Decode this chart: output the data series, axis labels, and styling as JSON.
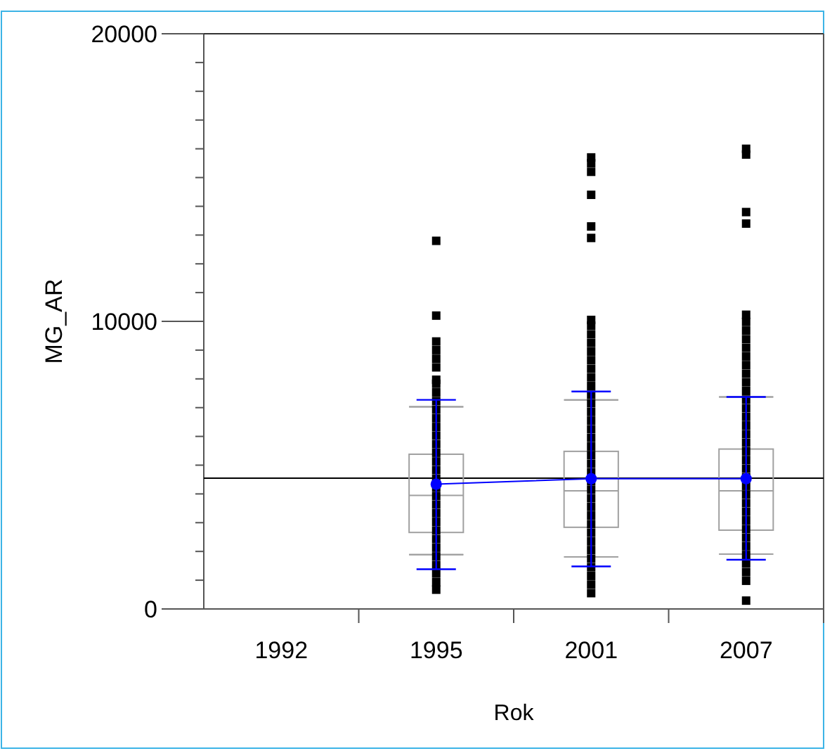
{
  "chart_data": {
    "type": "box",
    "xlabel": "Rok",
    "ylabel": "MG_AR",
    "categories": [
      "1992",
      "1995",
      "2001",
      "2007"
    ],
    "ylim": [
      0,
      20000
    ],
    "yticks": [
      0,
      {
        "value": 1000,
        "label": null
      },
      {
        "value": 2000,
        "label": null
      },
      {
        "value": 3000,
        "label": null
      },
      {
        "value": 4000,
        "label": null
      },
      {
        "value": 5000,
        "label": null
      },
      {
        "value": 6000,
        "label": null
      },
      {
        "value": 7000,
        "label": null
      },
      {
        "value": 8000,
        "label": null
      },
      {
        "value": 9000,
        "label": null
      },
      10000,
      {
        "value": 11000,
        "label": null
      },
      {
        "value": 12000,
        "label": null
      },
      {
        "value": 13000,
        "label": null
      },
      {
        "value": 14000,
        "label": null
      },
      {
        "value": 15000,
        "label": null
      },
      {
        "value": 16000,
        "label": null
      },
      {
        "value": 17000,
        "label": null
      },
      {
        "value": 18000,
        "label": null
      },
      {
        "value": 19000,
        "label": null
      },
      20000
    ],
    "grid": false,
    "ref_lines": [
      {
        "axis": "y",
        "value": 4550,
        "color": "#000000"
      }
    ],
    "series": [
      {
        "color": "#a0a0a0",
        "boxes": [
          null,
          {
            "low": 1890,
            "q1": 2660,
            "median": 3950,
            "q3": 5380,
            "high": 7030,
            "outliers": [
              670,
              930,
              1230,
              1530,
              1830,
              2130,
              2430,
              2730,
              3030,
              3330,
              3630,
              3930,
              4230,
              4530,
              4830,
              5130,
              5430,
              5730,
              6030,
              6330,
              6630,
              6930,
              7230,
              7530,
              7830,
              7970,
              8400,
              8700,
              9000,
              9300,
              10200,
              12800
            ]
          },
          {
            "low": 1810,
            "q1": 2840,
            "median": 4110,
            "q3": 5480,
            "high": 7270,
            "outliers": [
              550,
              850,
              1150,
              1450,
              1750,
              2050,
              2350,
              2650,
              2950,
              3250,
              3550,
              3850,
              4150,
              4450,
              4750,
              5050,
              5350,
              5650,
              5950,
              6250,
              6550,
              6850,
              7150,
              7450,
              7750,
              8050,
              8350,
              8650,
              8950,
              9250,
              9550,
              9850,
              10050,
              12900,
              13300,
              14400,
              15200,
              15500,
              15700
            ]
          },
          {
            "low": 1910,
            "q1": 2740,
            "median": 4110,
            "q3": 5560,
            "high": 7370,
            "outliers": [
              290,
              980,
              1280,
              1580,
              1880,
              2180,
              2480,
              2780,
              3080,
              3380,
              3680,
              3980,
              4280,
              4580,
              4880,
              5180,
              5480,
              5780,
              6080,
              6380,
              6680,
              6980,
              7280,
              7580,
              7880,
              8180,
              8480,
              8780,
              9080,
              9380,
              9680,
              9980,
              10230,
              13400,
              13800,
              15800,
              16000
            ]
          }
        ]
      },
      {
        "type": "line",
        "color": "#0000ff",
        "marker": "circle",
        "values": [
          null,
          4340,
          4530,
          4530
        ],
        "errors": [
          null,
          [
            1380,
            7270
          ],
          [
            1480,
            7560
          ],
          [
            1710,
            7370
          ]
        ]
      }
    ]
  }
}
